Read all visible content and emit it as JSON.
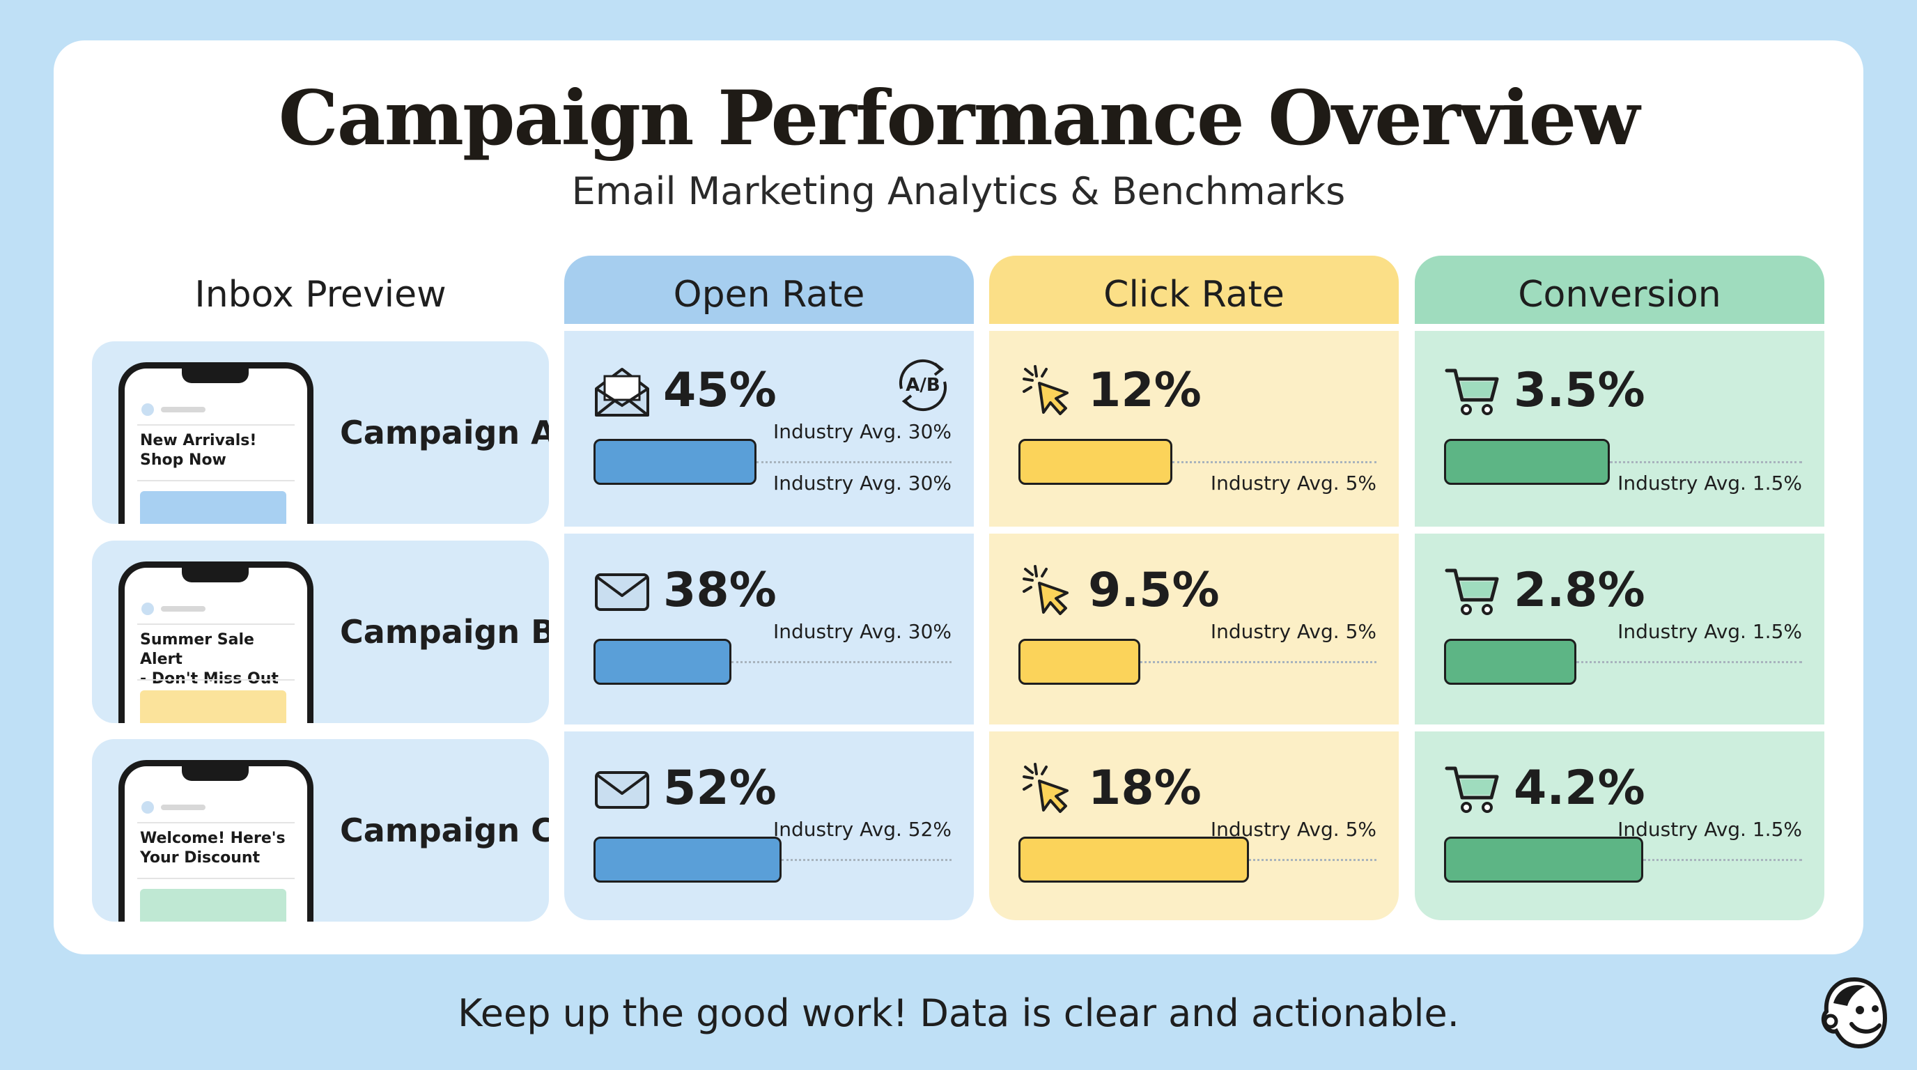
{
  "header": {
    "title": "Campaign Performance Overview",
    "subtitle": "Email Marketing Analytics & Benchmarks"
  },
  "columns": {
    "inbox": "Inbox Preview",
    "open": "Open Rate",
    "click": "Click Rate",
    "conversion": "Conversion"
  },
  "colors": {
    "open_bg": "#d6e9f9",
    "open_head": "#a6ceef",
    "open_bar": "#5a9fd8",
    "click_bg": "#fcefc6",
    "click_head": "#fbdf87",
    "click_bar": "#fbd35a",
    "conv_bg": "#cdeedd",
    "conv_head": "#9fdcbe",
    "conv_bar": "#5db585"
  },
  "campaigns": [
    {
      "name": "Campaign A",
      "subject_line1": "New Arrivals!",
      "subject_line2": "Shop Now",
      "thumb_color": "#a8d0f2",
      "open_icon": "open-envelope-icon",
      "has_ab": true,
      "ab_label": "A/B",
      "open": "45%",
      "open_value": 45,
      "open_bench": "Industry Avg. 30%",
      "open_bench_extra": "Industry Avg. 30%",
      "click": "12%",
      "click_value": 12,
      "click_bench": "Industry Avg. 5%",
      "conv": "3.5%",
      "conv_value": 3.5,
      "conv_bench": "Industry Avg. 1.5%"
    },
    {
      "name": "Campaign B",
      "subject_line1": "Summer Sale Alert",
      "subject_line2": "- Don't Miss Out",
      "thumb_color": "#fbe39b",
      "open_icon": "envelope-icon",
      "has_ab": false,
      "ab_label": "",
      "open": "38%",
      "open_value": 38,
      "open_bench": "Industry Avg. 30%",
      "open_bench_extra": "",
      "click": "9.5%",
      "click_value": 9.5,
      "click_bench": "Industry Avg. 5%",
      "conv": "2.8%",
      "conv_value": 2.8,
      "conv_bench": "Industry Avg. 1.5%"
    },
    {
      "name": "Campaign C",
      "subject_line1": "Welcome! Here's",
      "subject_line2": "Your Discount",
      "thumb_color": "#bfe8d3",
      "open_icon": "envelope-icon",
      "has_ab": false,
      "ab_label": "",
      "open": "52%",
      "open_value": 52,
      "open_bench": "Industry Avg. 52%",
      "open_bench_extra": "",
      "click": "18%",
      "click_value": 18,
      "click_bench": "Industry Avg. 5%",
      "conv": "4.2%",
      "conv_value": 4.2,
      "conv_bench": "Industry Avg. 1.5%"
    }
  ],
  "chart_data": {
    "type": "bar",
    "categories": [
      "Campaign A",
      "Campaign B",
      "Campaign C"
    ],
    "series": [
      {
        "name": "Open Rate",
        "values": [
          45,
          38,
          52
        ]
      },
      {
        "name": "Click Rate",
        "values": [
          12,
          9.5,
          18
        ]
      },
      {
        "name": "Conversion",
        "values": [
          3.5,
          2.8,
          4.2
        ]
      }
    ],
    "benchmarks": {
      "Open Rate": [
        30,
        30,
        52
      ],
      "Click Rate": [
        5,
        5,
        5
      ],
      "Conversion": [
        1.5,
        1.5,
        1.5
      ]
    },
    "orientation": "horizontal",
    "unit": "%"
  },
  "footer": {
    "message": "Keep up the good work! Data is clear and actionable."
  },
  "mascot": "mascot-logo-icon"
}
